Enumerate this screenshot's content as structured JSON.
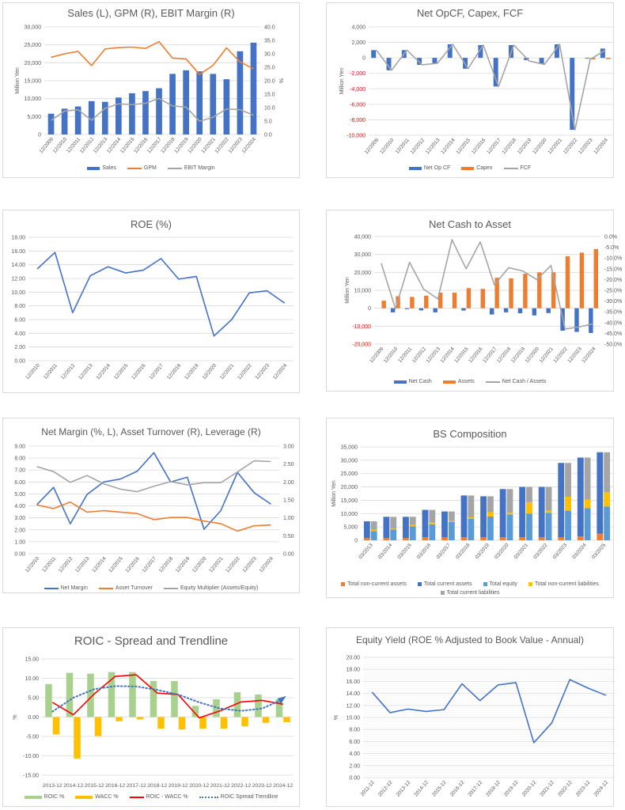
{
  "chart_data": [
    {
      "type": "bar",
      "title": "Sales (L), GPM (R), EBIT Margin (R)",
      "categories": [
        "12/2009",
        "12/2010",
        "12/2011",
        "12/2012",
        "12/2013",
        "12/2014",
        "12/2015",
        "12/2016",
        "12/2017",
        "12/2018",
        "12/2019",
        "12/2020",
        "12/2021",
        "12/2022",
        "12/2023",
        "12/2024"
      ],
      "y_left": {
        "min": 0,
        "max": 30000,
        "step": 5000,
        "decimals": 0,
        "label": "Million Yen"
      },
      "y_right": {
        "min": 0,
        "max": 40,
        "step": 5,
        "decimals": 1,
        "label": "%"
      },
      "grid": true,
      "legend": "bottom",
      "series": [
        {
          "name": "Sales",
          "kind": "bar",
          "axis": "left",
          "color": "#4472c4",
          "values": [
            5800,
            7200,
            7800,
            9300,
            9100,
            10300,
            11500,
            12100,
            12900,
            16900,
            17900,
            17600,
            16900,
            15400,
            23200,
            25600
          ]
        },
        {
          "name": "GPM",
          "kind": "line",
          "axis": "right",
          "color": "#ed7d31",
          "values": [
            28.7,
            30.0,
            30.9,
            25.6,
            31.8,
            32.3,
            32.5,
            32.0,
            34.5,
            28.4,
            28.1,
            22.3,
            25.7,
            32.2,
            27.0,
            24.4
          ]
        },
        {
          "name": "EBIT Margin",
          "kind": "line",
          "axis": "right",
          "color": "#a5a5a5",
          "values": [
            5.2,
            8.7,
            9.2,
            5.3,
            9.7,
            11.4,
            11.1,
            11.6,
            13.4,
            10.6,
            10.2,
            4.9,
            6.4,
            9.5,
            9.2,
            7.2
          ]
        }
      ]
    },
    {
      "type": "bar",
      "title": "Net OpCF, Capex, FCF",
      "categories": [
        "12/2009",
        "12/2010",
        "12/2011",
        "12/2012",
        "12/2013",
        "12/2014",
        "12/2015",
        "12/2016",
        "12/2017",
        "12/2018",
        "12/2019",
        "12/2020",
        "12/2021",
        "12/2022",
        "12/2023",
        "12/2024"
      ],
      "y_left": {
        "min": -10000,
        "max": 4000,
        "step": 2000,
        "decimals": 0,
        "label": "Million Yen",
        "negative_color": "#ff0000"
      },
      "grid": true,
      "legend": "bottom",
      "series": [
        {
          "name": "Net Op CF",
          "kind": "bar",
          "axis": "left",
          "color": "#4472c4",
          "values": [
            1000,
            -1600,
            1000,
            -900,
            -700,
            1750,
            -1400,
            1650,
            -3700,
            1650,
            -300,
            -800,
            1750,
            -9300,
            -100,
            1200
          ]
        },
        {
          "name": "Capex",
          "kind": "bar",
          "axis": "left",
          "color": "#ed7d31",
          "values": [
            0,
            0,
            0,
            0,
            0,
            0,
            0,
            0,
            0,
            0,
            0,
            0,
            0,
            0,
            -200,
            -150
          ]
        },
        {
          "name": "FCF",
          "kind": "line",
          "axis": "left",
          "color": "#a5a5a5",
          "values": [
            1000,
            -1600,
            1000,
            -900,
            -700,
            1750,
            -1400,
            1650,
            -3700,
            1650,
            -400,
            -850,
            1750,
            -9300,
            -200,
            1000
          ]
        }
      ]
    },
    {
      "type": "line",
      "title": "ROE (%)",
      "categories": [
        "12/2010",
        "12/2011",
        "12/2012",
        "12/2013",
        "12/2014",
        "12/2015",
        "12/2016",
        "12/2017",
        "12/2018",
        "12/2019",
        "12/2020",
        "12/2021",
        "12/2022",
        "12/2023",
        "12/2024"
      ],
      "y_left": {
        "min": 0,
        "max": 18,
        "step": 2,
        "decimals": 2,
        "label": ""
      },
      "grid": true,
      "legend": "none",
      "series": [
        {
          "kind": "line",
          "axis": "left",
          "color": "#4472c4",
          "values": [
            13.4,
            15.8,
            7.0,
            12.4,
            13.7,
            12.8,
            13.2,
            14.9,
            11.9,
            12.3,
            3.6,
            6.0,
            9.9,
            10.2,
            8.4
          ]
        }
      ]
    },
    {
      "type": "bar",
      "title": "Net Cash to Asset",
      "categories": [
        "12/2009",
        "12/2010",
        "12/2011",
        "12/2012",
        "12/2013",
        "12/2014",
        "12/2015",
        "12/2016",
        "12/2017",
        "12/2018",
        "12/2019",
        "12/2020",
        "12/2021",
        "12/2022",
        "12/2023",
        "12/2024"
      ],
      "y_left": {
        "min": -20000,
        "max": 40000,
        "step": 10000,
        "decimals": 0,
        "label": "Million Yen",
        "negative_color": "#ff0000"
      },
      "y_right": {
        "min": -50,
        "max": 0,
        "step": 5,
        "decimals": 1,
        "suffix": "%",
        "label": ""
      },
      "grid": true,
      "legend": "bottom",
      "series": [
        {
          "name": "Net Cash",
          "kind": "bar",
          "axis": "left",
          "color": "#4472c4",
          "values": [
            0,
            -2300,
            -500,
            -1200,
            -2300,
            0,
            -1300,
            0,
            -3500,
            -2300,
            -2800,
            -4000,
            -2700,
            -12500,
            -13200,
            -13800
          ]
        },
        {
          "name": "Assets",
          "kind": "bar",
          "axis": "left",
          "color": "#ed7d31",
          "values": [
            4200,
            6700,
            6300,
            7000,
            8700,
            8700,
            11200,
            10800,
            17000,
            16700,
            19200,
            20000,
            20000,
            29000,
            31000,
            33000
          ]
        },
        {
          "name": "Net Cash / Assets",
          "kind": "line",
          "axis": "right",
          "color": "#a5a5a5",
          "values": [
            -12.5,
            -33.5,
            -12.0,
            -24.5,
            -29.0,
            -1.5,
            -15.0,
            -2.5,
            -22.5,
            -14.5,
            -16.0,
            -20.0,
            -13.5,
            -43.0,
            -42.0,
            -40.5
          ]
        }
      ]
    },
    {
      "type": "line",
      "title": "Net Margin (%, L), Asset Turnover (R), Leverage (R)",
      "categories": [
        "12/2010",
        "12/2011",
        "12/2012",
        "12/2013",
        "12/2014",
        "12/2015",
        "12/2016",
        "12/2017",
        "12/2018",
        "12/2019",
        "12/2020",
        "12/2021",
        "12/2022",
        "12/2023",
        "12/2024"
      ],
      "y_left": {
        "min": 0,
        "max": 9,
        "step": 1,
        "decimals": 2,
        "label": ""
      },
      "y_right": {
        "min": 0,
        "max": 3,
        "step": 0.5,
        "decimals": 2,
        "label": ""
      },
      "grid": true,
      "legend": "bottom",
      "series": [
        {
          "name": "Net Margin",
          "kind": "line",
          "axis": "left",
          "color": "#4472c4",
          "values": [
            4.1,
            5.55,
            2.5,
            4.95,
            6.0,
            6.25,
            6.9,
            8.45,
            6.0,
            6.4,
            2.05,
            3.6,
            6.8,
            5.1,
            4.15
          ]
        },
        {
          "name": "Asset Turnover",
          "kind": "line",
          "axis": "right",
          "color": "#ed7d31",
          "values": [
            1.36,
            1.26,
            1.44,
            1.16,
            1.2,
            1.16,
            1.12,
            0.95,
            1.01,
            1.01,
            0.91,
            0.84,
            0.63,
            0.78,
            0.8
          ]
        },
        {
          "name": "Equity Multiplier (Assets/Equity)",
          "kind": "line",
          "axis": "right",
          "color": "#a5a5a5",
          "values": [
            2.43,
            2.29,
            1.99,
            2.18,
            1.95,
            1.8,
            1.73,
            1.88,
            2.01,
            1.92,
            1.98,
            1.98,
            2.28,
            2.59,
            2.57
          ]
        }
      ]
    },
    {
      "type": "bar",
      "title": "BS Composition",
      "categories": [
        "03/2013",
        "03/2014",
        "03/2015",
        "03/2016",
        "03/2017",
        "03/2018",
        "03/2019",
        "03/2020",
        "03/2021",
        "03/2022",
        "03/2023",
        "03/2024",
        "03/2025"
      ],
      "y_left": {
        "min": 0,
        "max": 35000,
        "step": 5000,
        "decimals": 0,
        "label": "Million Yen"
      },
      "grid": true,
      "legend": "bottom",
      "stacked": true,
      "series": [
        {
          "name": "Total non-current assets",
          "kind": "bar",
          "stack": "assets",
          "axis": "left",
          "color": "#ed7d31",
          "values": [
            800,
            800,
            800,
            1100,
            1100,
            1100,
            1100,
            1100,
            1100,
            1100,
            1100,
            1400,
            2500
          ]
        },
        {
          "name": "Total current assets",
          "kind": "bar",
          "stack": "assets",
          "axis": "left",
          "color": "#4472c4",
          "values": [
            6300,
            8000,
            8000,
            10300,
            9700,
            15700,
            15400,
            18100,
            18900,
            18900,
            27900,
            29600,
            30500
          ]
        },
        {
          "name": "Total equity",
          "kind": "bar",
          "stack": "liab",
          "axis": "left",
          "color": "#5b9bd5",
          "values": [
            3400,
            4000,
            5200,
            6000,
            6900,
            8000,
            8900,
            9700,
            10000,
            10300,
            11100,
            12000,
            12600
          ]
        },
        {
          "name": "Total non-current liabilities",
          "kind": "bar",
          "stack": "liab",
          "axis": "left",
          "color": "#ffc000",
          "values": [
            500,
            400,
            500,
            600,
            300,
            600,
            1600,
            600,
            4300,
            800,
            5200,
            3200,
            5400
          ]
        },
        {
          "name": "Total current liabilities",
          "kind": "bar",
          "stack": "liab",
          "axis": "left",
          "color": "#a5a5a5",
          "values": [
            3200,
            4400,
            3100,
            4800,
            3600,
            8200,
            6000,
            8900,
            5700,
            8900,
            12700,
            15800,
            15000
          ]
        }
      ]
    },
    {
      "type": "bar",
      "title": "ROIC - Spread and Trendline",
      "categories": [
        "2013-12",
        "2014-12",
        "2015-12",
        "2016-12",
        "2017-12",
        "2018-12",
        "2019-12",
        "2020-12",
        "2021-12",
        "2022-12",
        "2023-12",
        "2024-12"
      ],
      "y_left": {
        "min": -15,
        "max": 15,
        "step": 5,
        "decimals": 2,
        "label": "%"
      },
      "grid": true,
      "legend": "bottom",
      "series": [
        {
          "name": "ROIC %",
          "kind": "bar",
          "axis": "left",
          "color": "#a9d18e",
          "values": [
            8.5,
            11.4,
            11.2,
            11.6,
            11.6,
            9.3,
            9.3,
            2.9,
            4.6,
            6.4,
            5.8,
            4.6
          ]
        },
        {
          "name": "WACC %",
          "kind": "bar",
          "axis": "left",
          "color": "#ffc000",
          "values": [
            -4.5,
            -10.7,
            -4.9,
            -1.1,
            -0.6,
            -3.0,
            -3.2,
            -3.0,
            -3.0,
            -2.4,
            -1.5,
            -1.3
          ]
        },
        {
          "name": "ROIC - WACC %",
          "kind": "line",
          "axis": "left",
          "color": "#ff0000",
          "values": [
            3.8,
            0.6,
            6.0,
            10.5,
            10.9,
            6.2,
            5.8,
            -0.2,
            1.6,
            3.9,
            4.3,
            3.3
          ]
        },
        {
          "name": "ROIC Spread Trendline",
          "kind": "trend",
          "axis": "left",
          "color": "#4472c4",
          "values": [
            1.4,
            5.0,
            7.2,
            8.0,
            7.9,
            7.0,
            5.8,
            3.8,
            2.2,
            1.6,
            2.2,
            4.6
          ]
        }
      ]
    },
    {
      "type": "line",
      "title": "Equity Yield (ROE % Adjusted to Book Value - Annual)",
      "categories": [
        "2011-12",
        "2012-12",
        "2013-12",
        "2014-12",
        "2015-12",
        "2016-12",
        "2017-12",
        "2018-12",
        "2019-12",
        "2020-12",
        "2021-12",
        "2022-12",
        "2023-12",
        "2024-12"
      ],
      "y_left": {
        "min": 0,
        "max": 20,
        "step": 2,
        "decimals": 2,
        "label": "%"
      },
      "grid": true,
      "minor_grid": true,
      "legend": "none",
      "series": [
        {
          "kind": "line",
          "axis": "left",
          "color": "#4472c4",
          "values": [
            14.2,
            10.8,
            11.4,
            11.0,
            11.3,
            15.6,
            12.8,
            15.4,
            15.8,
            5.8,
            9.1,
            16.3,
            14.9,
            13.7
          ]
        }
      ]
    }
  ]
}
